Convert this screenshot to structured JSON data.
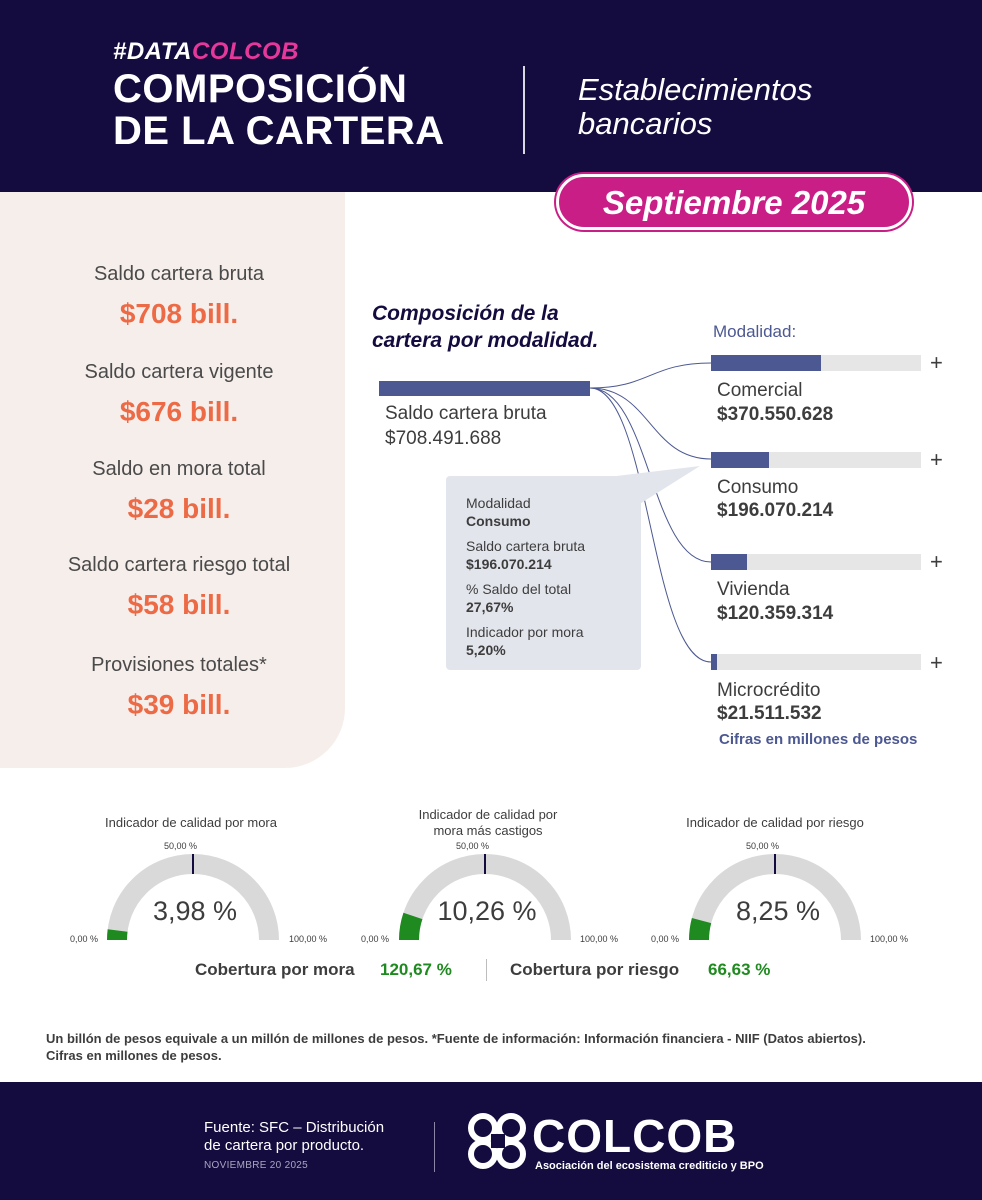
{
  "header": {
    "hashtag_prefix": "#DATA",
    "hashtag_suffix": "COLCOB",
    "title_line1": "COMPOSICIÓN",
    "title_line2": "DE LA CARTERA",
    "subtitle_line1": "Establecimientos",
    "subtitle_line2": "bancarios",
    "period": "Septiembre 2025"
  },
  "kpis": [
    {
      "label": "Saldo cartera bruta",
      "value": "$708 bill."
    },
    {
      "label": "Saldo cartera vigente",
      "value": "$676 bill."
    },
    {
      "label": "Saldo en mora total",
      "value": "$28 bill."
    },
    {
      "label": "Saldo cartera riesgo total",
      "value": "$58 bill."
    },
    {
      "label": "Provisiones totales*",
      "value": "$39 bill."
    }
  ],
  "composition": {
    "title_line1": "Composición de la",
    "title_line2": "cartera por modalidad.",
    "modalidad_header": "Modalidad:",
    "total_label": "Saldo cartera bruta",
    "total_value": "$708.491.688",
    "expand_symbol": "+",
    "units_note": "Cifras en millones de pesos",
    "items": [
      {
        "name": "Comercial",
        "value": "$370.550.628",
        "share": 0.523
      },
      {
        "name": "Consumo",
        "value": "$196.070.214",
        "share": 0.277
      },
      {
        "name": "Vivienda",
        "value": "$120.359.314",
        "share": 0.17
      },
      {
        "name": "Microcrédito",
        "value": "$21.511.532",
        "share": 0.03
      }
    ],
    "bar_color": "#4c5891",
    "track_color": "#e6e6e6"
  },
  "tooltip": {
    "label1": "Modalidad",
    "value1": "Consumo",
    "label2": "Saldo cartera bruta",
    "value2": "$196.070.214",
    "label3": "% Saldo del total",
    "value3": "27,67%",
    "label4": "Indicador por mora",
    "value4": "5,20%"
  },
  "gauges": [
    {
      "title_line1": "Indicador de calidad por mora",
      "title_line2": "",
      "value": "3,98 %",
      "fraction": 0.0398,
      "tick_min": "0,00 %",
      "tick_mid": "50,00 %",
      "tick_max": "100,00 %"
    },
    {
      "title_line1": "Indicador de calidad por",
      "title_line2": "mora más castigos",
      "value": "10,26 %",
      "fraction": 0.1026,
      "tick_min": "0,00 %",
      "tick_mid": "50,00 %",
      "tick_max": "100,00 %"
    },
    {
      "title_line1": "Indicador de calidad por riesgo",
      "title_line2": "",
      "value": "8,25 %",
      "fraction": 0.0825,
      "tick_min": "0,00 %",
      "tick_mid": "50,00 %",
      "tick_max": "100,00 %"
    }
  ],
  "gauge_colors": {
    "track": "#d9d9d9",
    "fill": "#1f8a1f",
    "tick": "#140b3f"
  },
  "coverage": {
    "mora_label": "Cobertura por mora",
    "mora_value": "120,67 %",
    "riesgo_label": "Cobertura por riesgo",
    "riesgo_value": "66,63 %"
  },
  "footnote_line1": "Un billón de pesos equivale a un millón de millones de pesos. *Fuente de información: Información financiera - NIIF (Datos abiertos).",
  "footnote_line2": "Cifras en millones de pesos.",
  "footer": {
    "source_line1": "Fuente: SFC – Distribución",
    "source_line2": "de cartera por producto.",
    "date": "NOVIEMBRE 20 2025",
    "logo_name": "COLCOB",
    "logo_tagline": "Asociación del ecosistema crediticio y BPO"
  },
  "colors": {
    "navy": "#140b3f",
    "magenta": "#c81e86",
    "pink": "#e6389a",
    "orange": "#ec6a45",
    "green": "#1f8a1f",
    "slate_blue": "#4c5891",
    "panel_bg": "#f6eeeb"
  }
}
